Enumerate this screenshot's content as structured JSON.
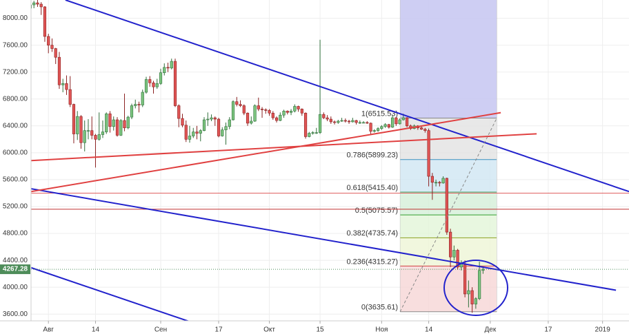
{
  "chart_data": {
    "type": "candlestick",
    "xlim": [
      0.2,
      165.3
    ],
    "ylim": [
      3500,
      8272
    ],
    "xticks": [
      {
        "value": 5,
        "label": "Авг"
      },
      {
        "value": 18,
        "label": "14"
      },
      {
        "value": 36,
        "label": "Сен"
      },
      {
        "value": 52,
        "label": "17"
      },
      {
        "value": 66,
        "label": "Окт"
      },
      {
        "value": 80,
        "label": "15"
      },
      {
        "value": 97,
        "label": "Ноя"
      },
      {
        "value": 110,
        "label": "14"
      },
      {
        "value": 127,
        "label": "Дек"
      },
      {
        "value": 143,
        "label": "17"
      },
      {
        "value": 158,
        "label": "2019"
      }
    ],
    "yticks": [
      {
        "value": 8000,
        "label": "8000.00"
      },
      {
        "value": 7600,
        "label": "7600.00"
      },
      {
        "value": 7200,
        "label": "7200.00"
      },
      {
        "value": 6800,
        "label": "6800.00"
      },
      {
        "value": 6400,
        "label": "6400.00"
      },
      {
        "value": 6000,
        "label": "6000.00"
      },
      {
        "value": 5600,
        "label": "5600.00"
      },
      {
        "value": 5200,
        "label": "5200.00"
      },
      {
        "value": 4800,
        "label": "4800.00"
      },
      {
        "value": 4400,
        "label": "4400.00"
      },
      {
        "value": 4000,
        "label": "4000.00"
      },
      {
        "value": 3600,
        "label": "3600.00"
      }
    ],
    "grid": true,
    "up_color": "#7cc47f",
    "down_color": "#e05555",
    "candles": [
      [
        8150,
        8280,
        8100,
        8200
      ],
      [
        8200,
        8260,
        8150,
        8230
      ],
      [
        8230,
        8290,
        8170,
        8210
      ],
      [
        8210,
        8240,
        8050,
        8170
      ],
      [
        8170,
        8180,
        7650,
        7730
      ],
      [
        7730,
        7770,
        7480,
        7600
      ],
      [
        7600,
        7700,
        7500,
        7550
      ],
      [
        7550,
        7560,
        7320,
        7420
      ],
      [
        7420,
        7500,
        6950,
        7010
      ],
      [
        7010,
        7100,
        6900,
        7030
      ],
      [
        7030,
        7150,
        6860,
        6940
      ],
      [
        6940,
        7140,
        6680,
        6720
      ],
      [
        6720,
        6730,
        6140,
        6280
      ],
      [
        6280,
        6620,
        6190,
        6540
      ],
      [
        6540,
        6560,
        6060,
        6150
      ],
      [
        6150,
        6480,
        6020,
        6330
      ],
      [
        6330,
        6500,
        6200,
        6330
      ],
      [
        6330,
        6540,
        6200,
        6260
      ],
      [
        6260,
        6280,
        5780,
        6200
      ],
      [
        6200,
        6600,
        6180,
        6270
      ],
      [
        6270,
        6480,
        6220,
        6310
      ],
      [
        6310,
        6600,
        6280,
        6580
      ],
      [
        6580,
        6620,
        6300,
        6390
      ],
      [
        6390,
        6540,
        6330,
        6490
      ],
      [
        6490,
        6530,
        6240,
        6260
      ],
      [
        6260,
        6500,
        6250,
        6480
      ],
      [
        6480,
        6880,
        6320,
        6370
      ],
      [
        6370,
        6550,
        6350,
        6530
      ],
      [
        6530,
        6730,
        6500,
        6700
      ],
      [
        6700,
        6790,
        6660,
        6720
      ],
      [
        6720,
        6760,
        6600,
        6710
      ],
      [
        6710,
        6940,
        6680,
        6900
      ],
      [
        6900,
        7130,
        6880,
        7090
      ],
      [
        7090,
        7140,
        6980,
        7040
      ],
      [
        7040,
        7070,
        6880,
        6980
      ],
      [
        6980,
        7100,
        6950,
        7030
      ],
      [
        7030,
        7250,
        7010,
        7190
      ],
      [
        7190,
        7330,
        7150,
        7270
      ],
      [
        7270,
        7340,
        7200,
        7260
      ],
      [
        7260,
        7400,
        7240,
        7360
      ],
      [
        7360,
        7400,
        6680,
        6700
      ],
      [
        6700,
        6720,
        6380,
        6510
      ],
      [
        6510,
        6580,
        6380,
        6410
      ],
      [
        6410,
        6480,
        6160,
        6200
      ],
      [
        6200,
        6400,
        6150,
        6250
      ],
      [
        6250,
        6370,
        6220,
        6310
      ],
      [
        6310,
        6400,
        6200,
        6290
      ],
      [
        6290,
        6350,
        6170,
        6330
      ],
      [
        6330,
        6530,
        6320,
        6490
      ],
      [
        6490,
        6600,
        6400,
        6500
      ],
      [
        6500,
        6570,
        6470,
        6520
      ],
      [
        6520,
        6540,
        6400,
        6500
      ],
      [
        6500,
        6520,
        6230,
        6250
      ],
      [
        6250,
        6380,
        6240,
        6340
      ],
      [
        6340,
        6450,
        6120,
        6390
      ],
      [
        6390,
        6530,
        6350,
        6490
      ],
      [
        6490,
        6780,
        6480,
        6760
      ],
      [
        6760,
        6830,
        6690,
        6720
      ],
      [
        6720,
        6780,
        6680,
        6700
      ],
      [
        6700,
        6720,
        6560,
        6590
      ],
      [
        6590,
        6600,
        6400,
        6440
      ],
      [
        6440,
        6540,
        6420,
        6470
      ],
      [
        6470,
        6720,
        6460,
        6700
      ],
      [
        6700,
        6820,
        6620,
        6650
      ],
      [
        6650,
        6680,
        6520,
        6640
      ],
      [
        6640,
        6660,
        6580,
        6630
      ],
      [
        6630,
        6650,
        6550,
        6590
      ],
      [
        6590,
        6620,
        6490,
        6520
      ],
      [
        6520,
        6540,
        6450,
        6480
      ],
      [
        6480,
        6600,
        6470,
        6560
      ],
      [
        6560,
        6640,
        6520,
        6620
      ],
      [
        6620,
        6630,
        6570,
        6600
      ],
      [
        6600,
        6650,
        6560,
        6620
      ],
      [
        6620,
        6720,
        6600,
        6690
      ],
      [
        6690,
        6700,
        6610,
        6650
      ],
      [
        6650,
        6660,
        6550,
        6590
      ],
      [
        6590,
        6600,
        6210,
        6240
      ],
      [
        6240,
        6310,
        6230,
        6290
      ],
      [
        6290,
        6320,
        6270,
        6300
      ],
      [
        6300,
        6370,
        6280,
        6300
      ],
      [
        6300,
        7680,
        6280,
        6570
      ],
      [
        6570,
        6600,
        6500,
        6520
      ],
      [
        6520,
        6560,
        6470,
        6500
      ],
      [
        6500,
        6540,
        6430,
        6460
      ],
      [
        6460,
        6480,
        6420,
        6450
      ],
      [
        6450,
        6490,
        6430,
        6470
      ],
      [
        6470,
        6520,
        6460,
        6480
      ],
      [
        6480,
        6510,
        6450,
        6470
      ],
      [
        6470,
        6490,
        6430,
        6460
      ],
      [
        6460,
        6520,
        6450,
        6480
      ],
      [
        6480,
        6490,
        6420,
        6450
      ],
      [
        6450,
        6480,
        6430,
        6450
      ],
      [
        6450,
        6470,
        6440,
        6450
      ],
      [
        6450,
        6470,
        6430,
        6440
      ],
      [
        6440,
        6450,
        6280,
        6320
      ],
      [
        6320,
        6350,
        6300,
        6330
      ],
      [
        6330,
        6380,
        6310,
        6360
      ],
      [
        6360,
        6410,
        6340,
        6390
      ],
      [
        6390,
        6440,
        6370,
        6420
      ],
      [
        6420,
        6430,
        6360,
        6380
      ],
      [
        6380,
        6550,
        6370,
        6520
      ],
      [
        6520,
        6530,
        6400,
        6430
      ],
      [
        6430,
        6510,
        6420,
        6490
      ],
      [
        6490,
        6580,
        6480,
        6520
      ],
      [
        6520,
        6530,
        6380,
        6400
      ],
      [
        6400,
        6420,
        6340,
        6360
      ],
      [
        6360,
        6420,
        6350,
        6400
      ],
      [
        6400,
        6410,
        6340,
        6370
      ],
      [
        6370,
        6390,
        6340,
        6350
      ],
      [
        6350,
        6370,
        6300,
        6330
      ],
      [
        6330,
        6360,
        5500,
        5650
      ],
      [
        5650,
        5700,
        5300,
        5560
      ],
      [
        5560,
        5600,
        5500,
        5560
      ],
      [
        5560,
        5580,
        5500,
        5550
      ],
      [
        5550,
        5650,
        5540,
        5620
      ],
      [
        5620,
        5630,
        4780,
        4820
      ],
      [
        4820,
        4870,
        4300,
        4450
      ],
      [
        4450,
        4620,
        4400,
        4550
      ],
      [
        4550,
        4570,
        4260,
        4300
      ],
      [
        4300,
        4400,
        4250,
        4350
      ],
      [
        4350,
        4400,
        3850,
        3900
      ],
      [
        3900,
        4100,
        3700,
        3950
      ],
      [
        3950,
        4000,
        3620,
        3750
      ],
      [
        3750,
        3850,
        3680,
        3830
      ],
      [
        3830,
        4380,
        3810,
        4250
      ],
      [
        4250,
        4300,
        4200,
        4267.28
      ]
    ],
    "last_price": {
      "value": 4267.28,
      "label": "4267.28",
      "color": "#4e8d5a"
    },
    "fib_range": [
      102.1,
      128.8
    ],
    "fib_top_fill": "#c9c9f2",
    "fib_levels": [
      {
        "value": 6515.53,
        "label": "1(6515.53)",
        "color": "#888888",
        "fill": "#e2e2e2"
      },
      {
        "value": 5899.23,
        "label": "0.786(5899.23)",
        "color": "#3a8fc0",
        "fill": "#d0e6f2"
      },
      {
        "value": 5415.4,
        "label": "0.618(5415.40)",
        "color": "#3ca060",
        "fill": "#d4efd8"
      },
      {
        "value": 5075.57,
        "label": "0.5(5075.57)",
        "color": "#2e9e2e",
        "fill": "#e2f5d8"
      },
      {
        "value": 4735.74,
        "label": "0.382(4735.74)",
        "color": "#8aa020",
        "fill": "#eef5d6"
      },
      {
        "value": 4315.27,
        "label": "0.236(4315.27)",
        "color": "#d04040",
        "fill": "#f6d6d6"
      },
      {
        "value": 3635.61,
        "label": "0(3635.61)",
        "color": "#888888"
      }
    ],
    "hlines": [
      {
        "value": 5400,
        "color": "#e06060"
      },
      {
        "value": 5160,
        "color": "#c03030"
      },
      {
        "value": 3495,
        "color": "#c03030"
      }
    ],
    "trendlines": [
      {
        "color": "#2222cc",
        "x": [
          9.7,
          165.3
        ],
        "y": [
          8272,
          5423
        ]
      },
      {
        "color": "#2222cc",
        "x": [
          0.2,
          161.7
        ],
        "y": [
          5465,
          3956
        ]
      },
      {
        "color": "#2222cc",
        "x": [
          0.2,
          48.8
        ],
        "y": [
          4291,
          3401
        ]
      },
      {
        "color": "#e04040",
        "x": [
          0.2,
          129.9
        ],
        "y": [
          5423,
          6596
        ]
      },
      {
        "color": "#e04040",
        "x": [
          0.2,
          139.8
        ],
        "y": [
          5884,
          6282
        ]
      },
      {
        "color": "#888888",
        "x": [
          102.1,
          128.8
        ],
        "y": [
          3635.61,
          6515.53
        ],
        "dashed": true
      }
    ]
  }
}
